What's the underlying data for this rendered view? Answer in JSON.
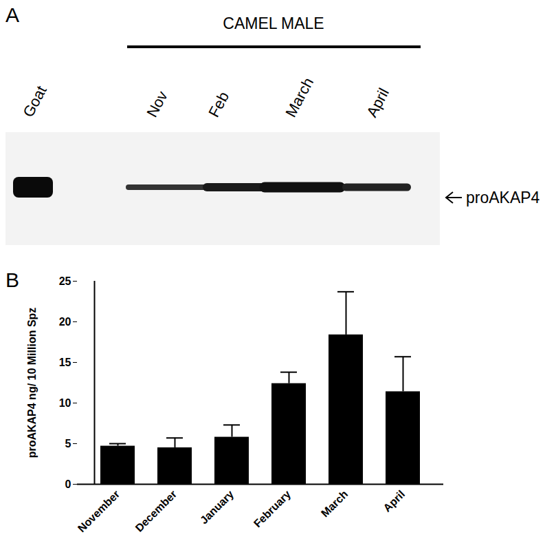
{
  "panel_a": {
    "label": "A",
    "header": "CAMEL MALE",
    "lanes": [
      "Goat",
      "Nov",
      "Feb",
      "March",
      "April"
    ],
    "band_label": "proAKAP4"
  },
  "panel_b_label": "B",
  "chart_data": {
    "type": "bar",
    "categories": [
      "November",
      "December",
      "January",
      "February",
      "March",
      "April"
    ],
    "values": [
      4.7,
      4.5,
      5.8,
      12.4,
      18.4,
      11.4
    ],
    "errors": [
      0.3,
      1.2,
      1.5,
      1.4,
      5.3,
      4.3
    ],
    "color": "#000000",
    "y_label": "proAKAP4 ng/ 10 Million Spz",
    "ylim": [
      0,
      25
    ],
    "yticks": [
      0,
      5,
      10,
      15,
      20,
      25
    ],
    "grid": false
  }
}
